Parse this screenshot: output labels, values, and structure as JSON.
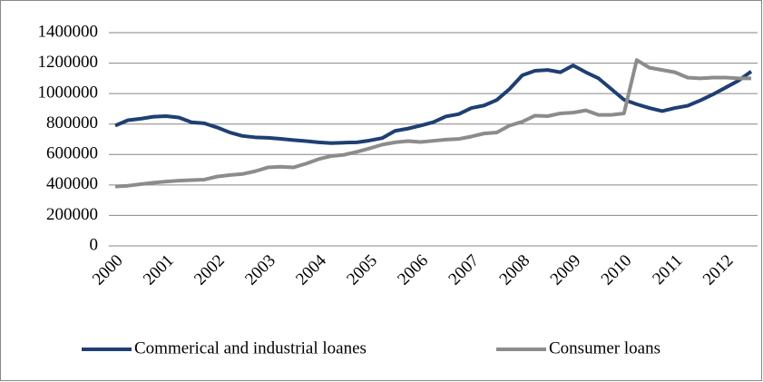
{
  "chart_data": {
    "type": "line",
    "categories": [
      "2000",
      null,
      null,
      null,
      "2001",
      null,
      null,
      null,
      "2002",
      null,
      null,
      null,
      "2003",
      null,
      null,
      null,
      "2004",
      null,
      null,
      null,
      "2005",
      null,
      null,
      null,
      "2006",
      null,
      null,
      null,
      "2007",
      null,
      null,
      null,
      "2008",
      null,
      null,
      null,
      "2009",
      null,
      null,
      null,
      "2010",
      null,
      null,
      null,
      "2011",
      null,
      null,
      null,
      "2012",
      null,
      null
    ],
    "series": [
      {
        "name": "Commerical and industrial loanes",
        "color": "#1f3f73",
        "values": [
          790000,
          825000,
          835000,
          848000,
          852000,
          843000,
          812000,
          805000,
          778000,
          745000,
          722000,
          713000,
          710000,
          703000,
          695000,
          688000,
          680000,
          675000,
          678000,
          680000,
          692000,
          708000,
          755000,
          770000,
          790000,
          812000,
          850000,
          865000,
          905000,
          922000,
          958000,
          1030000,
          1120000,
          1150000,
          1155000,
          1140000,
          1185000,
          1140000,
          1100000,
          1030000,
          960000,
          930000,
          905000,
          885000,
          905000,
          920000,
          955000,
          995000,
          1040000,
          1085000,
          1145000
        ]
      },
      {
        "name": "Consumer loans",
        "color": "#8c8c8c",
        "values": [
          390000,
          395000,
          405000,
          415000,
          422000,
          428000,
          432000,
          435000,
          455000,
          465000,
          472000,
          490000,
          515000,
          520000,
          515000,
          540000,
          570000,
          590000,
          598000,
          618000,
          640000,
          665000,
          680000,
          688000,
          682000,
          690000,
          698000,
          702000,
          718000,
          738000,
          745000,
          790000,
          815000,
          855000,
          852000,
          870000,
          875000,
          890000,
          860000,
          860000,
          870000,
          1220000,
          1170000,
          1155000,
          1140000,
          1105000,
          1100000,
          1105000,
          1105000,
          1100000,
          1100000
        ]
      }
    ],
    "ylim": [
      0,
      1400000
    ],
    "yticks": [
      0,
      200000,
      400000,
      600000,
      800000,
      1000000,
      1200000,
      1400000
    ],
    "grid": true,
    "legend": "bottom"
  }
}
